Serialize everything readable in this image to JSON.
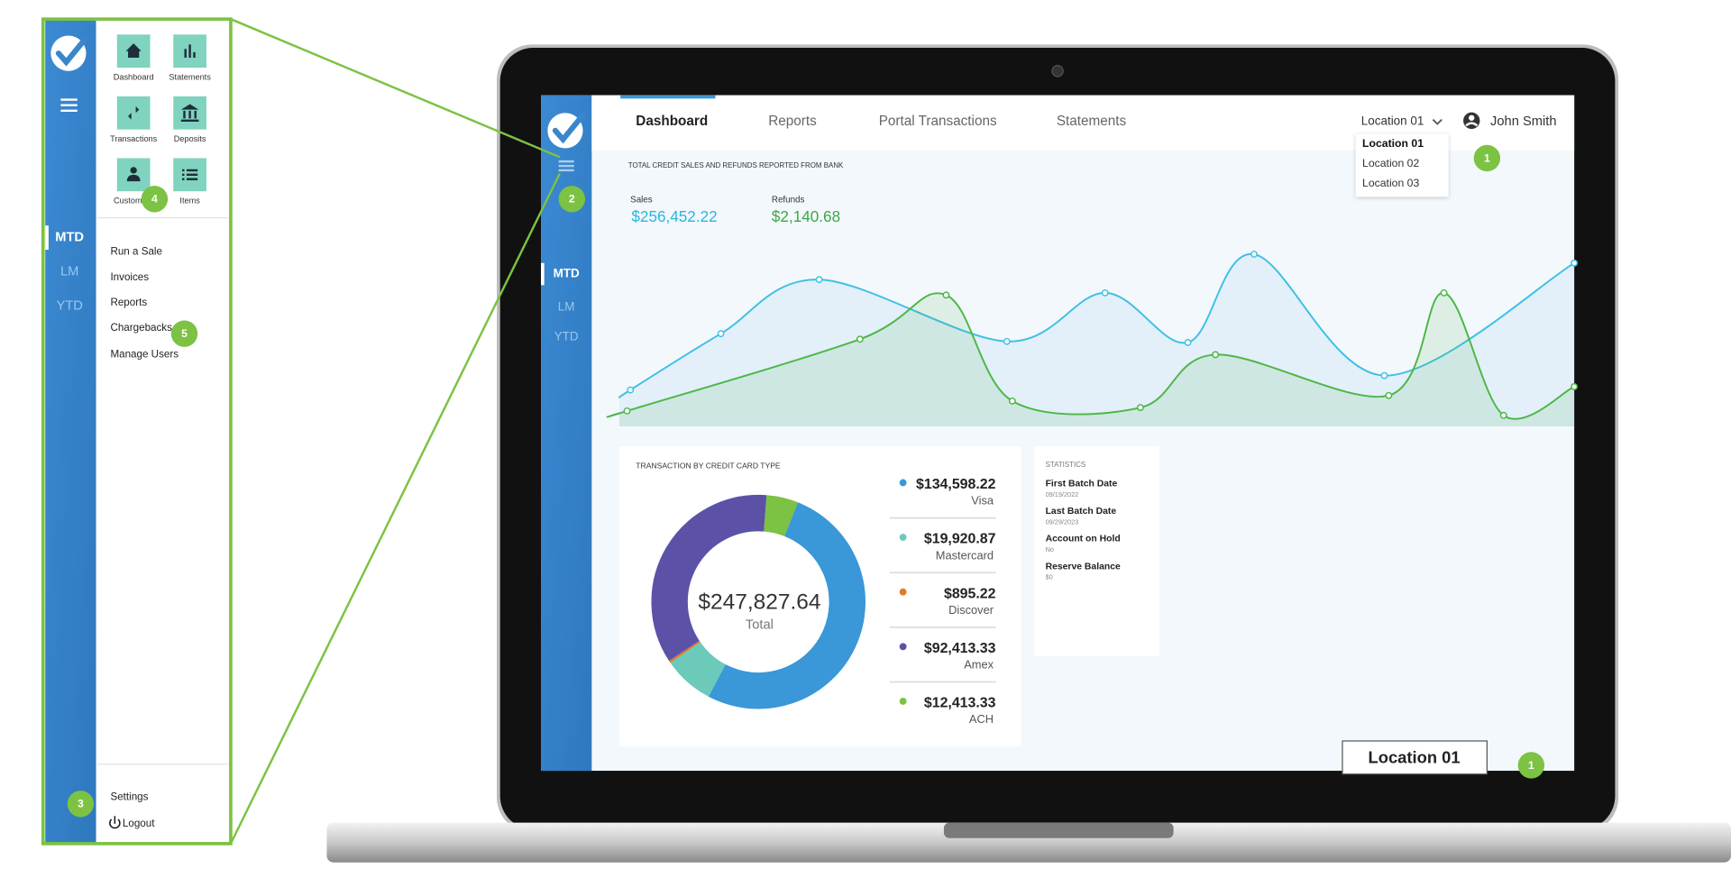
{
  "side_panel": {
    "tiles": [
      "Dashboard",
      "Statements",
      "Transactions",
      "Deposits",
      "Customers",
      "Items"
    ],
    "periods": [
      "MTD",
      "LM",
      "YTD"
    ],
    "menu": [
      "Run a Sale",
      "Invoices",
      "Reports",
      "Chargebacks",
      "Manage Users"
    ],
    "footer": [
      "Settings",
      "Logout"
    ]
  },
  "badges": {
    "location_menu": "1",
    "hamburger": "2",
    "settings": "3",
    "customers": "4",
    "chargebacks": "5",
    "location_caption": "1"
  },
  "screen": {
    "tabs": [
      "Dashboard",
      "Reports",
      "Portal Transactions",
      "Statements"
    ],
    "location": "Location 01",
    "user": "John Smith",
    "location_options": [
      "Location 01",
      "Location 02",
      "Location 03"
    ],
    "sidebar_periods": [
      "MTD",
      "LM",
      "YTD"
    ],
    "sales_chart": {
      "title": "TOTAL CREDIT SALES AND REFUNDS REPORTED FROM BANK",
      "sales_label": "Sales",
      "sales_value": "$256,452.22",
      "refunds_label": "Refunds",
      "refunds_value": "$2,140.68"
    },
    "card_types": {
      "title": "TRANSACTION BY CREDIT CARD TYPE",
      "total": "$247,827.64",
      "total_label": "Total",
      "items": [
        {
          "name": "Visa",
          "label": "$134,598.22",
          "value": 134598.22,
          "color": "#3a97d8"
        },
        {
          "name": "Mastercard",
          "label": "$19,920.87",
          "value": 19920.87,
          "color": "#6ccabb"
        },
        {
          "name": "Discover",
          "label": "$895.22",
          "value": 895.22,
          "color": "#e07b26"
        },
        {
          "name": "Amex",
          "label": "$92,413.33",
          "value": 92413.33,
          "color": "#5b52a8"
        },
        {
          "name": "ACH",
          "label": "$12,413.33",
          "value": 12413.33,
          "color": "#7cc243"
        }
      ]
    },
    "statistics": {
      "title": "STATISTICS",
      "items": [
        {
          "label": "First Batch Date",
          "value": "09/19/2022"
        },
        {
          "label": "Last Batch Date",
          "value": "09/29/2023"
        },
        {
          "label": "Account on Hold",
          "value": "No"
        },
        {
          "label": "Reserve Balance",
          "value": "$0"
        }
      ]
    },
    "location_caption": "Location 01"
  }
}
